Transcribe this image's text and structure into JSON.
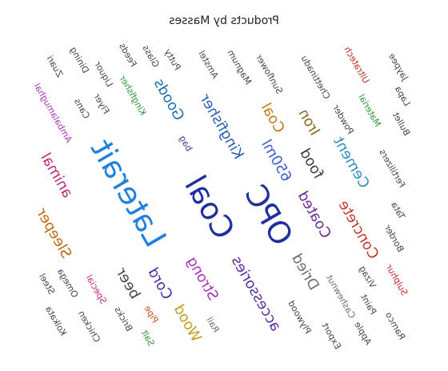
{
  "chart_data": {
    "type": "wordcloud",
    "title": "Products by Masses",
    "mirrored": true,
    "words": [
      {
        "text": "Coal",
        "weight": 3,
        "color": "#1f2f9e"
      },
      {
        "text": "Laterait",
        "weight": 3,
        "color": "#1f80e0"
      },
      {
        "text": "OPC",
        "weight": 3,
        "color": "#1f2f9e"
      },
      {
        "text": "Kingfisher",
        "weight": 2,
        "color": "#2d5fb3"
      },
      {
        "text": "Strong",
        "weight": 2,
        "color": "#a23bb5"
      },
      {
        "text": "accessories",
        "weight": 2,
        "color": "#5a2fa0"
      },
      {
        "text": "650ml",
        "weight": 2,
        "color": "#3f61c9"
      },
      {
        "text": "Cord",
        "weight": 2,
        "color": "#4c2fa0"
      },
      {
        "text": "Coated",
        "weight": 2,
        "color": "#6b2c8f"
      },
      {
        "text": "food",
        "weight": 2,
        "color": "#3c3c3c"
      },
      {
        "text": "Dried",
        "weight": 2,
        "color": "#6d6d6d"
      },
      {
        "text": "beer",
        "weight": 2,
        "color": "#444444"
      },
      {
        "text": "Coal",
        "weight": 2,
        "color": "#c07a1a"
      },
      {
        "text": "Concrete",
        "weight": 2,
        "color": "#c33a2a"
      },
      {
        "text": "Goods",
        "weight": 2,
        "color": "#1f6fb0"
      },
      {
        "text": "Cement",
        "weight": 2,
        "color": "#2f8fbf"
      },
      {
        "text": "Sleeper",
        "weight": 2,
        "color": "#c06a1a"
      },
      {
        "text": "animal",
        "weight": 2,
        "color": "#c02a7a"
      },
      {
        "text": "Wood",
        "weight": 2,
        "color": "#c0a020"
      },
      {
        "text": "Iron",
        "weight": 2,
        "color": "#8a6a20"
      },
      {
        "text": "Special",
        "weight": 1,
        "color": "#c02a7a"
      },
      {
        "text": "bag",
        "weight": 1,
        "color": "#5a2fa0"
      },
      {
        "text": "Pipe",
        "weight": 1,
        "color": "#d04a2a"
      },
      {
        "text": "Kingfisher",
        "weight": 1,
        "color": "#2a9a3a"
      },
      {
        "text": "Plywood",
        "weight": 1,
        "color": "#444444"
      },
      {
        "text": "Cashewnut",
        "weight": 1,
        "color": "#6d6d6d"
      },
      {
        "text": "Sunflower",
        "weight": 1,
        "color": "#444444"
      },
      {
        "text": "Bricks",
        "weight": 1,
        "color": "#444444"
      },
      {
        "text": "Rail",
        "weight": 1,
        "color": "#6d6d6d"
      },
      {
        "text": "Flyer",
        "weight": 1,
        "color": "#444444"
      },
      {
        "text": "Omega",
        "weight": 1,
        "color": "#444444"
      },
      {
        "text": "Powder",
        "weight": 1,
        "color": "#444444"
      },
      {
        "text": "Magnum",
        "weight": 1,
        "color": "#444444"
      },
      {
        "text": "Fertilizers",
        "weight": 1,
        "color": "#444444"
      },
      {
        "text": "Amstel",
        "weight": 1,
        "color": "#444444"
      },
      {
        "text": "Ambalamughal",
        "weight": 1,
        "color": "#a23bb5"
      },
      {
        "text": "Chettinadu",
        "weight": 1,
        "color": "#444444"
      },
      {
        "text": "Chicken",
        "weight": 1,
        "color": "#444444"
      },
      {
        "text": "Vizag",
        "weight": 1,
        "color": "#444444"
      },
      {
        "text": "Putty",
        "weight": 1,
        "color": "#444444"
      },
      {
        "text": "Border",
        "weight": 1,
        "color": "#444444"
      },
      {
        "text": "Material",
        "weight": 1,
        "color": "#2a9a3a"
      },
      {
        "text": "Liquor",
        "weight": 1,
        "color": "#444444"
      },
      {
        "text": "Kolkata",
        "weight": 1,
        "color": "#444444"
      },
      {
        "text": "Steel",
        "weight": 1,
        "color": "#444444"
      },
      {
        "text": "Salt",
        "weight": 1,
        "color": "#2a9a3a"
      },
      {
        "text": "Export",
        "weight": 1,
        "color": "#444444"
      },
      {
        "text": "Glass",
        "weight": 1,
        "color": "#444444"
      },
      {
        "text": "Paint",
        "weight": 1,
        "color": "#444444"
      },
      {
        "text": "Cans",
        "weight": 1,
        "color": "#444444"
      },
      {
        "text": "Feeds",
        "weight": 1,
        "color": "#444444"
      },
      {
        "text": "Sulphur",
        "weight": 1,
        "color": "#c02a2a"
      },
      {
        "text": "Ultratech",
        "weight": 1,
        "color": "#c02a2a"
      },
      {
        "text": "Bullet",
        "weight": 1,
        "color": "#444444"
      },
      {
        "text": "Dining",
        "weight": 1,
        "color": "#444444"
      },
      {
        "text": "Apple",
        "weight": 1,
        "color": "#444444"
      },
      {
        "text": "Zuari",
        "weight": 1,
        "color": "#444444"
      },
      {
        "text": "Ramco",
        "weight": 1,
        "color": "#444444"
      },
      {
        "text": "Jaypee",
        "weight": 1,
        "color": "#444444"
      },
      {
        "text": "Track",
        "weight": 1,
        "color": "#444444"
      },
      {
        "text": "Pillar",
        "weight": 1,
        "color": "#444444"
      },
      {
        "text": "Supreme",
        "weight": 1,
        "color": "#444444"
      },
      {
        "text": "Poultry",
        "weight": 1,
        "color": "#444444"
      },
      {
        "text": "Maida",
        "weight": 1,
        "color": "#444444"
      },
      {
        "text": "Sugar",
        "weight": 1,
        "color": "#444444"
      },
      {
        "text": "Cattle",
        "weight": 1,
        "color": "#444444"
      },
      {
        "text": "Super",
        "weight": 1,
        "color": "#444444"
      },
      {
        "text": "Tata",
        "weight": 1,
        "color": "#444444"
      },
      {
        "text": "Lapa",
        "weight": 1,
        "color": "#444444"
      },
      {
        "text": "Sanjay",
        "weight": 1,
        "color": "#444444"
      },
      {
        "text": "Teak",
        "weight": 1,
        "color": "#444444"
      },
      {
        "text": "Coke",
        "weight": 1,
        "color": "#444444"
      },
      {
        "text": "Gypsum",
        "weight": 1,
        "color": "#444444"
      },
      {
        "text": "Indomie",
        "weight": 1,
        "color": "#444444"
      },
      {
        "text": "Hindalco",
        "weight": 1,
        "color": "#444444"
      }
    ]
  }
}
